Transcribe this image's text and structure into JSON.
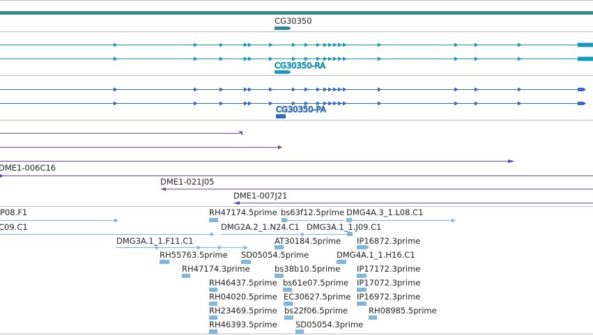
{
  "colors": {
    "gene": "#2e8a8a",
    "transcript_ra": "#1799b8",
    "transcript_pa": "#2f6ac0",
    "purple": "#6a4fa0",
    "est": "#7fb6dc",
    "divider": "#b8bec6"
  },
  "gene_track": {
    "gene_label": "CG30350",
    "transcript_ra_label": "CG30350-RA",
    "transcript_pa_label": "CG30350-PA"
  },
  "clone_track": {
    "labels": [
      "DME1-006C16",
      "DME1-021J05",
      "DME1-007J21"
    ]
  },
  "est_track": {
    "labels": [
      "P08.F1",
      "RH47174.5prime",
      "bs63f12.5prime",
      "DMG4A.3_1.L08.C1",
      "C09.C1",
      "DMG2A.2_1.N24.C1",
      "DMG3A.1_1.J09.C1",
      "DMG3A.1_1.F11.C1",
      "AT30184.5prime",
      "IP16872.3prime",
      "RH55763.5prime",
      "SD05054.5prime",
      "DMG4A.1_1.H16.C1",
      "RH47174.3prime",
      "bs38b10.5prime",
      "IP17172.3prime",
      "RH46437.5prime",
      "bs61e07.5prime",
      "IP17072.3prime",
      "RH04020.5prime",
      "EC30627.5prime",
      "IP16972.3prime",
      "RH23469.5prime",
      "bs22f06.5prime",
      "RH08985.5prime",
      "RH46393.5prime",
      "SD05054.3prime"
    ]
  }
}
